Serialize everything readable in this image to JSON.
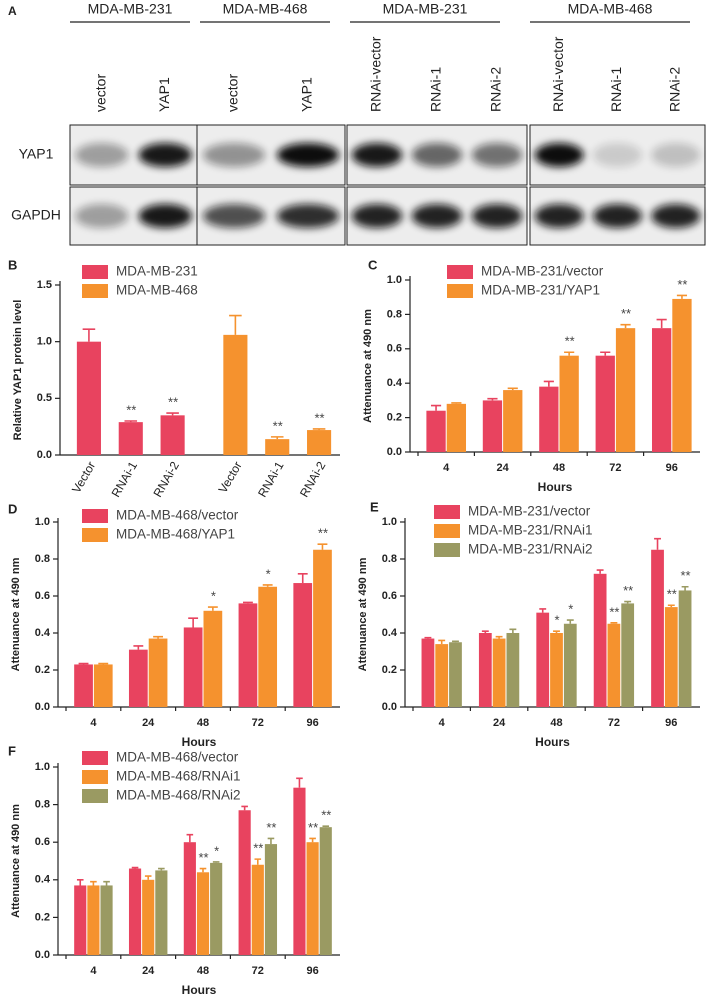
{
  "panel_a": {
    "label": "A",
    "groups": [
      "MDA-MB-231",
      "MDA-MB-468",
      "MDA-MB-231",
      "MDA-MB-468"
    ],
    "lanes": [
      [
        "vector",
        "YAP1"
      ],
      [
        "vector",
        "YAP1"
      ],
      [
        "RNAi-vector",
        "RNAi-1",
        "RNAi-2"
      ],
      [
        "RNAi-vector",
        "RNAi-1",
        "RNAi-2"
      ]
    ],
    "rows": [
      "YAP1",
      "GAPDH"
    ]
  },
  "chart_data": [
    {
      "type": "bar",
      "panel": "B",
      "ylabel": "Relative YAP1 protein level",
      "categories": [
        "Vector",
        "RNAi-1",
        "RNAi-2",
        "Vector",
        "RNAi-1",
        "RNAi-2"
      ],
      "series": [
        {
          "name": "MDA-MB-231",
          "color": "#e8435f",
          "values": [
            1.0,
            0.29,
            0.35,
            null,
            null,
            null
          ],
          "errors": [
            0.11,
            0.01,
            0.02,
            null,
            null,
            null
          ],
          "annotations": [
            null,
            "**",
            "**",
            null,
            null,
            null
          ]
        },
        {
          "name": "MDA-MB-468",
          "color": "#f5922e",
          "values": [
            null,
            null,
            null,
            1.06,
            0.14,
            0.22
          ],
          "errors": [
            null,
            null,
            null,
            0.17,
            0.02,
            0.01
          ],
          "annotations": [
            null,
            null,
            null,
            null,
            "**",
            "**"
          ]
        }
      ],
      "ylim": [
        0,
        1.5
      ],
      "yticks": [
        {
          "value": 0,
          "label": "0.0"
        },
        {
          "value": 0.5,
          "label": "0.5"
        },
        {
          "value": 1,
          "label": "1.0"
        },
        {
          "value": 1.5,
          "label": "1.5"
        }
      ],
      "grid": false,
      "legend": "upper left"
    },
    {
      "type": "bar",
      "panel": "C",
      "ylabel": "Attenuance at 490 nm",
      "xlabel": "Hours",
      "categories": [
        "4",
        "24",
        "48",
        "72",
        "96"
      ],
      "series": [
        {
          "name": "MDA-MB-231/vector",
          "color": "#e8435f",
          "values": [
            0.24,
            0.3,
            0.38,
            0.56,
            0.72
          ],
          "errors": [
            0.03,
            0.01,
            0.03,
            0.02,
            0.05
          ],
          "annotations": [
            null,
            null,
            null,
            null,
            null
          ]
        },
        {
          "name": "MDA-MB-231/YAP1",
          "color": "#f5922e",
          "values": [
            0.28,
            0.36,
            0.56,
            0.72,
            0.89
          ],
          "errors": [
            0.005,
            0.01,
            0.02,
            0.02,
            0.02
          ],
          "annotations": [
            null,
            null,
            "**",
            "**",
            "**"
          ]
        }
      ],
      "ylim": [
        0,
        1
      ],
      "yticks": [
        {
          "value": 0,
          "label": "0.0"
        },
        {
          "value": 0.2,
          "label": "0.2"
        },
        {
          "value": 0.4,
          "label": "0.4"
        },
        {
          "value": 0.6,
          "label": "0.6"
        },
        {
          "value": 0.8,
          "label": "0.8"
        },
        {
          "value": 1,
          "label": "1.0"
        }
      ],
      "grid": false,
      "legend": "upper left"
    },
    {
      "type": "bar",
      "panel": "D",
      "ylabel": "Attenuance at 490 nm",
      "xlabel": "Hours",
      "categories": [
        "4",
        "24",
        "48",
        "72",
        "96"
      ],
      "series": [
        {
          "name": "MDA-MB-468/vector",
          "color": "#e8435f",
          "values": [
            0.23,
            0.31,
            0.43,
            0.56,
            0.67
          ],
          "errors": [
            0.005,
            0.02,
            0.05,
            0.005,
            0.05
          ],
          "annotations": [
            null,
            null,
            null,
            null,
            null
          ]
        },
        {
          "name": "MDA-MB-468/YAP1",
          "color": "#f5922e",
          "values": [
            0.23,
            0.37,
            0.52,
            0.65,
            0.85
          ],
          "errors": [
            0.005,
            0.01,
            0.02,
            0.01,
            0.03
          ],
          "annotations": [
            null,
            null,
            "*",
            "*",
            "**"
          ]
        }
      ],
      "ylim": [
        0,
        1
      ],
      "yticks": [
        {
          "value": 0,
          "label": "0.0"
        },
        {
          "value": 0.2,
          "label": "0.2"
        },
        {
          "value": 0.4,
          "label": "0.4"
        },
        {
          "value": 0.6,
          "label": "0.6"
        },
        {
          "value": 0.8,
          "label": "0.8"
        },
        {
          "value": 1,
          "label": "1.0"
        }
      ],
      "grid": false,
      "legend": "upper left"
    },
    {
      "type": "bar",
      "panel": "E",
      "ylabel": "Attenuance at 490 nm",
      "xlabel": "Hours",
      "categories": [
        "4",
        "24",
        "48",
        "72",
        "96"
      ],
      "series": [
        {
          "name": "MDA-MB-231/vector",
          "color": "#e8435f",
          "values": [
            0.37,
            0.4,
            0.51,
            0.72,
            0.85
          ],
          "errors": [
            0.005,
            0.01,
            0.02,
            0.02,
            0.06
          ],
          "annotations": [
            null,
            null,
            null,
            null,
            null
          ]
        },
        {
          "name": "MDA-MB-231/RNAi1",
          "color": "#f5922e",
          "values": [
            0.34,
            0.37,
            0.4,
            0.45,
            0.54
          ],
          "errors": [
            0.02,
            0.01,
            0.01,
            0.005,
            0.01
          ],
          "annotations": [
            null,
            null,
            "*",
            "**",
            "**"
          ]
        },
        {
          "name": "MDA-MB-231/RNAi2",
          "color": "#9a9a62",
          "values": [
            0.35,
            0.4,
            0.45,
            0.56,
            0.63
          ],
          "errors": [
            0.005,
            0.02,
            0.02,
            0.01,
            0.02
          ],
          "annotations": [
            null,
            null,
            "*",
            "**",
            "**"
          ]
        }
      ],
      "ylim": [
        0,
        1
      ],
      "yticks": [
        {
          "value": 0,
          "label": "0.0"
        },
        {
          "value": 0.2,
          "label": "0.2"
        },
        {
          "value": 0.4,
          "label": "0.4"
        },
        {
          "value": 0.6,
          "label": "0.6"
        },
        {
          "value": 0.8,
          "label": "0.8"
        },
        {
          "value": 1,
          "label": "1.0"
        }
      ],
      "grid": false,
      "legend": "upper left"
    },
    {
      "type": "bar",
      "panel": "F",
      "ylabel": "Attenuance at 490 nm",
      "xlabel": "Hours",
      "categories": [
        "4",
        "24",
        "48",
        "72",
        "96"
      ],
      "series": [
        {
          "name": "MDA-MB-468/vector",
          "color": "#e8435f",
          "values": [
            0.37,
            0.46,
            0.6,
            0.77,
            0.89
          ],
          "errors": [
            0.03,
            0.005,
            0.04,
            0.02,
            0.05
          ],
          "annotations": [
            null,
            null,
            null,
            null,
            null
          ]
        },
        {
          "name": "MDA-MB-468/RNAi1",
          "color": "#f5922e",
          "values": [
            0.37,
            0.4,
            0.44,
            0.48,
            0.6
          ],
          "errors": [
            0.02,
            0.02,
            0.02,
            0.03,
            0.02
          ],
          "annotations": [
            null,
            null,
            "**",
            "**",
            "**"
          ]
        },
        {
          "name": "MDA-MB-468/RNAi2",
          "color": "#9a9a62",
          "values": [
            0.37,
            0.45,
            0.49,
            0.59,
            0.68
          ],
          "errors": [
            0.02,
            0.01,
            0.005,
            0.03,
            0.005
          ],
          "annotations": [
            null,
            null,
            "*",
            "**",
            "**"
          ]
        }
      ],
      "ylim": [
        0,
        1
      ],
      "yticks": [
        {
          "value": 0,
          "label": "0.0"
        },
        {
          "value": 0.2,
          "label": "0.2"
        },
        {
          "value": 0.4,
          "label": "0.4"
        },
        {
          "value": 0.6,
          "label": "0.6"
        },
        {
          "value": 0.8,
          "label": "0.8"
        },
        {
          "value": 1,
          "label": "1.0"
        }
      ],
      "grid": false,
      "legend": "upper left"
    }
  ]
}
